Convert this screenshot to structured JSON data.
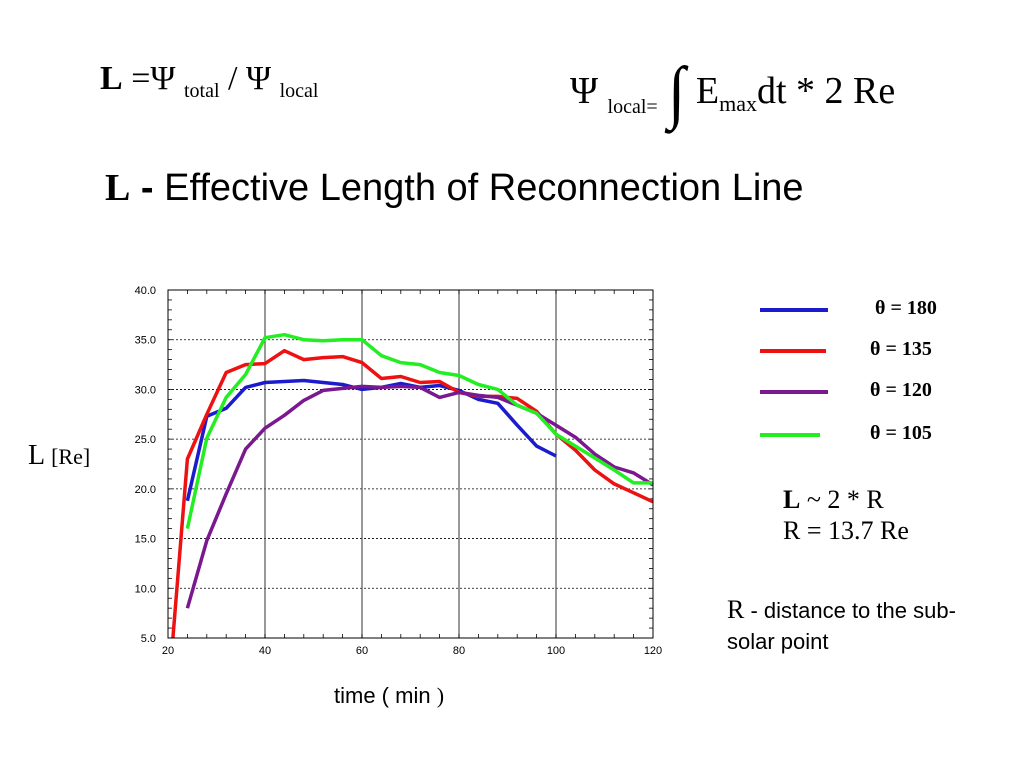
{
  "equations": {
    "left": {
      "lhs": "L",
      "equals": "=",
      "psi": "Ψ",
      "sub_total": "total",
      "slash": "/",
      "psi2": "Ψ",
      "sub_local": "local"
    },
    "right": {
      "psi": "Ψ",
      "sub_local": "local",
      "equals": "=",
      "integral": "∫",
      "e": "E",
      "sub_max": "max",
      "rest": "dt * 2 Re"
    }
  },
  "heading": {
    "symbol": "L",
    "dash": " - ",
    "text": "Effective Length of Reconnection Line"
  },
  "chart_data": {
    "type": "line",
    "xlabel": "time ( min )",
    "ylabel": "L [Re]",
    "xlim": [
      20,
      120
    ],
    "ylim": [
      5,
      40
    ],
    "xticks": [
      20,
      40,
      60,
      80,
      100,
      120
    ],
    "yticks": [
      5.0,
      10.0,
      15.0,
      20.0,
      25.0,
      30.0,
      35.0,
      40.0
    ],
    "grid": true,
    "legend_position": "right",
    "series": [
      {
        "name": "θ = 180",
        "color": "#1c1ccc",
        "x": [
          24,
          28,
          32,
          36,
          40,
          44,
          48,
          52,
          56,
          60,
          64,
          68,
          72,
          76,
          80,
          84,
          88,
          92,
          96,
          100
        ],
        "y": [
          18.8,
          27.3,
          28.1,
          30.2,
          30.7,
          30.8,
          30.9,
          30.7,
          30.5,
          30.0,
          30.2,
          30.6,
          30.2,
          30.4,
          29.9,
          29.0,
          28.6,
          26.4,
          24.3,
          23.3
        ]
      },
      {
        "name": "θ = 135",
        "color": "#ee1111",
        "x": [
          21,
          24,
          28,
          32,
          36,
          40,
          44,
          48,
          52,
          56,
          60,
          64,
          68,
          72,
          76,
          80,
          84,
          88,
          92,
          96,
          100,
          104,
          108,
          112,
          116,
          120
        ],
        "y": [
          5.0,
          23.0,
          27.5,
          31.7,
          32.5,
          32.6,
          33.9,
          33.0,
          33.2,
          33.3,
          32.7,
          31.1,
          31.3,
          30.7,
          30.8,
          29.7,
          29.3,
          29.3,
          29.1,
          27.8,
          25.5,
          23.9,
          21.9,
          20.5,
          19.6,
          18.7
        ]
      },
      {
        "name": "θ = 120",
        "color": "#7a1890",
        "x": [
          24,
          28,
          32,
          36,
          40,
          44,
          48,
          52,
          56,
          60,
          64,
          68,
          72,
          76,
          80,
          84,
          88,
          92,
          96,
          100,
          104,
          108,
          112,
          116,
          120
        ],
        "y": [
          8.0,
          14.8,
          19.5,
          24.0,
          26.1,
          27.4,
          28.9,
          29.9,
          30.1,
          30.3,
          30.2,
          30.3,
          30.2,
          29.2,
          29.7,
          29.4,
          29.2,
          28.4,
          27.6,
          26.4,
          25.2,
          23.5,
          22.2,
          21.6,
          20.4
        ]
      },
      {
        "name": "θ = 105",
        "color": "#22ee22",
        "x": [
          24,
          28,
          32,
          36,
          40,
          44,
          48,
          52,
          56,
          60,
          64,
          68,
          72,
          76,
          80,
          84,
          88,
          92,
          96,
          100,
          104,
          108,
          112,
          116,
          120
        ],
        "y": [
          16.0,
          25.1,
          29.2,
          31.5,
          35.2,
          35.5,
          35.0,
          34.9,
          35.0,
          35.0,
          33.4,
          32.7,
          32.5,
          31.7,
          31.4,
          30.5,
          30.0,
          28.4,
          27.6,
          25.5,
          24.3,
          23.1,
          21.9,
          20.6,
          20.6
        ]
      }
    ]
  },
  "axis_labels": {
    "y_main": "L",
    "y_unit": "[Re]",
    "x_main": "time ( min",
    "x_close": ")"
  },
  "notes": {
    "l_symbol": "L",
    "l_rest": " ~ 2 * R",
    "r_line": "R = 13.7 Re",
    "r_symbol": "R",
    "r_desc": " - distance to the sub-solar point"
  }
}
